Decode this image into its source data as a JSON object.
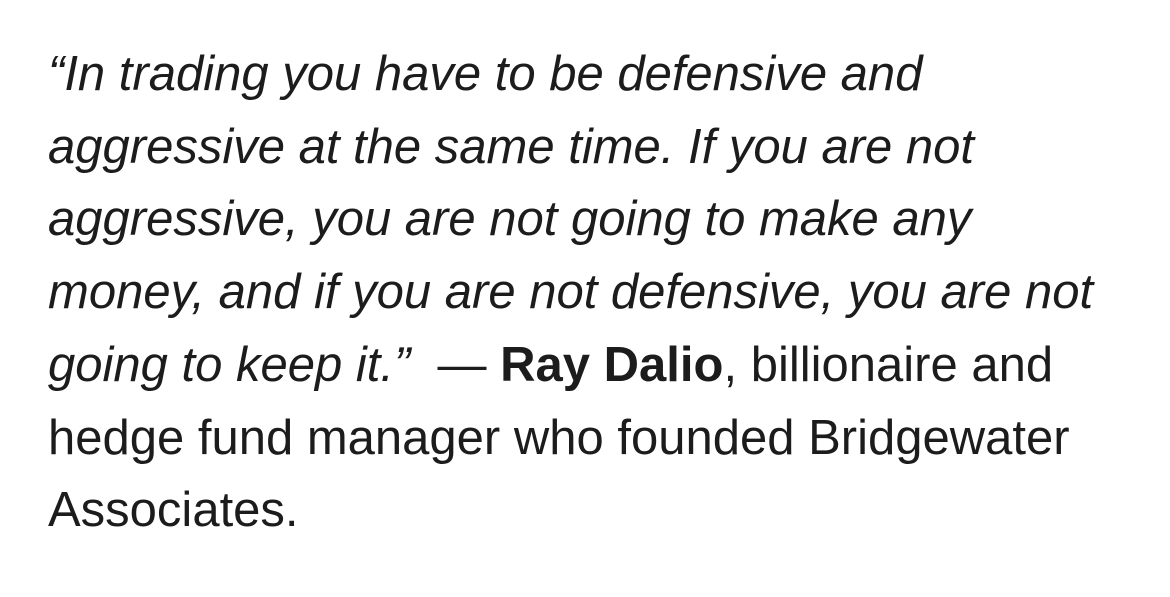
{
  "quote": {
    "text": "“In trading you have to be defensive and aggressive at the same time. If you are not aggressive, you are not going to make any money, and if you are not defensive, you are not going to keep it.”",
    "dash": "—",
    "author": "Ray Dalio",
    "comma": ",",
    "description": "billionaire and hedge fund manager who founded Bridgewater Associates."
  }
}
